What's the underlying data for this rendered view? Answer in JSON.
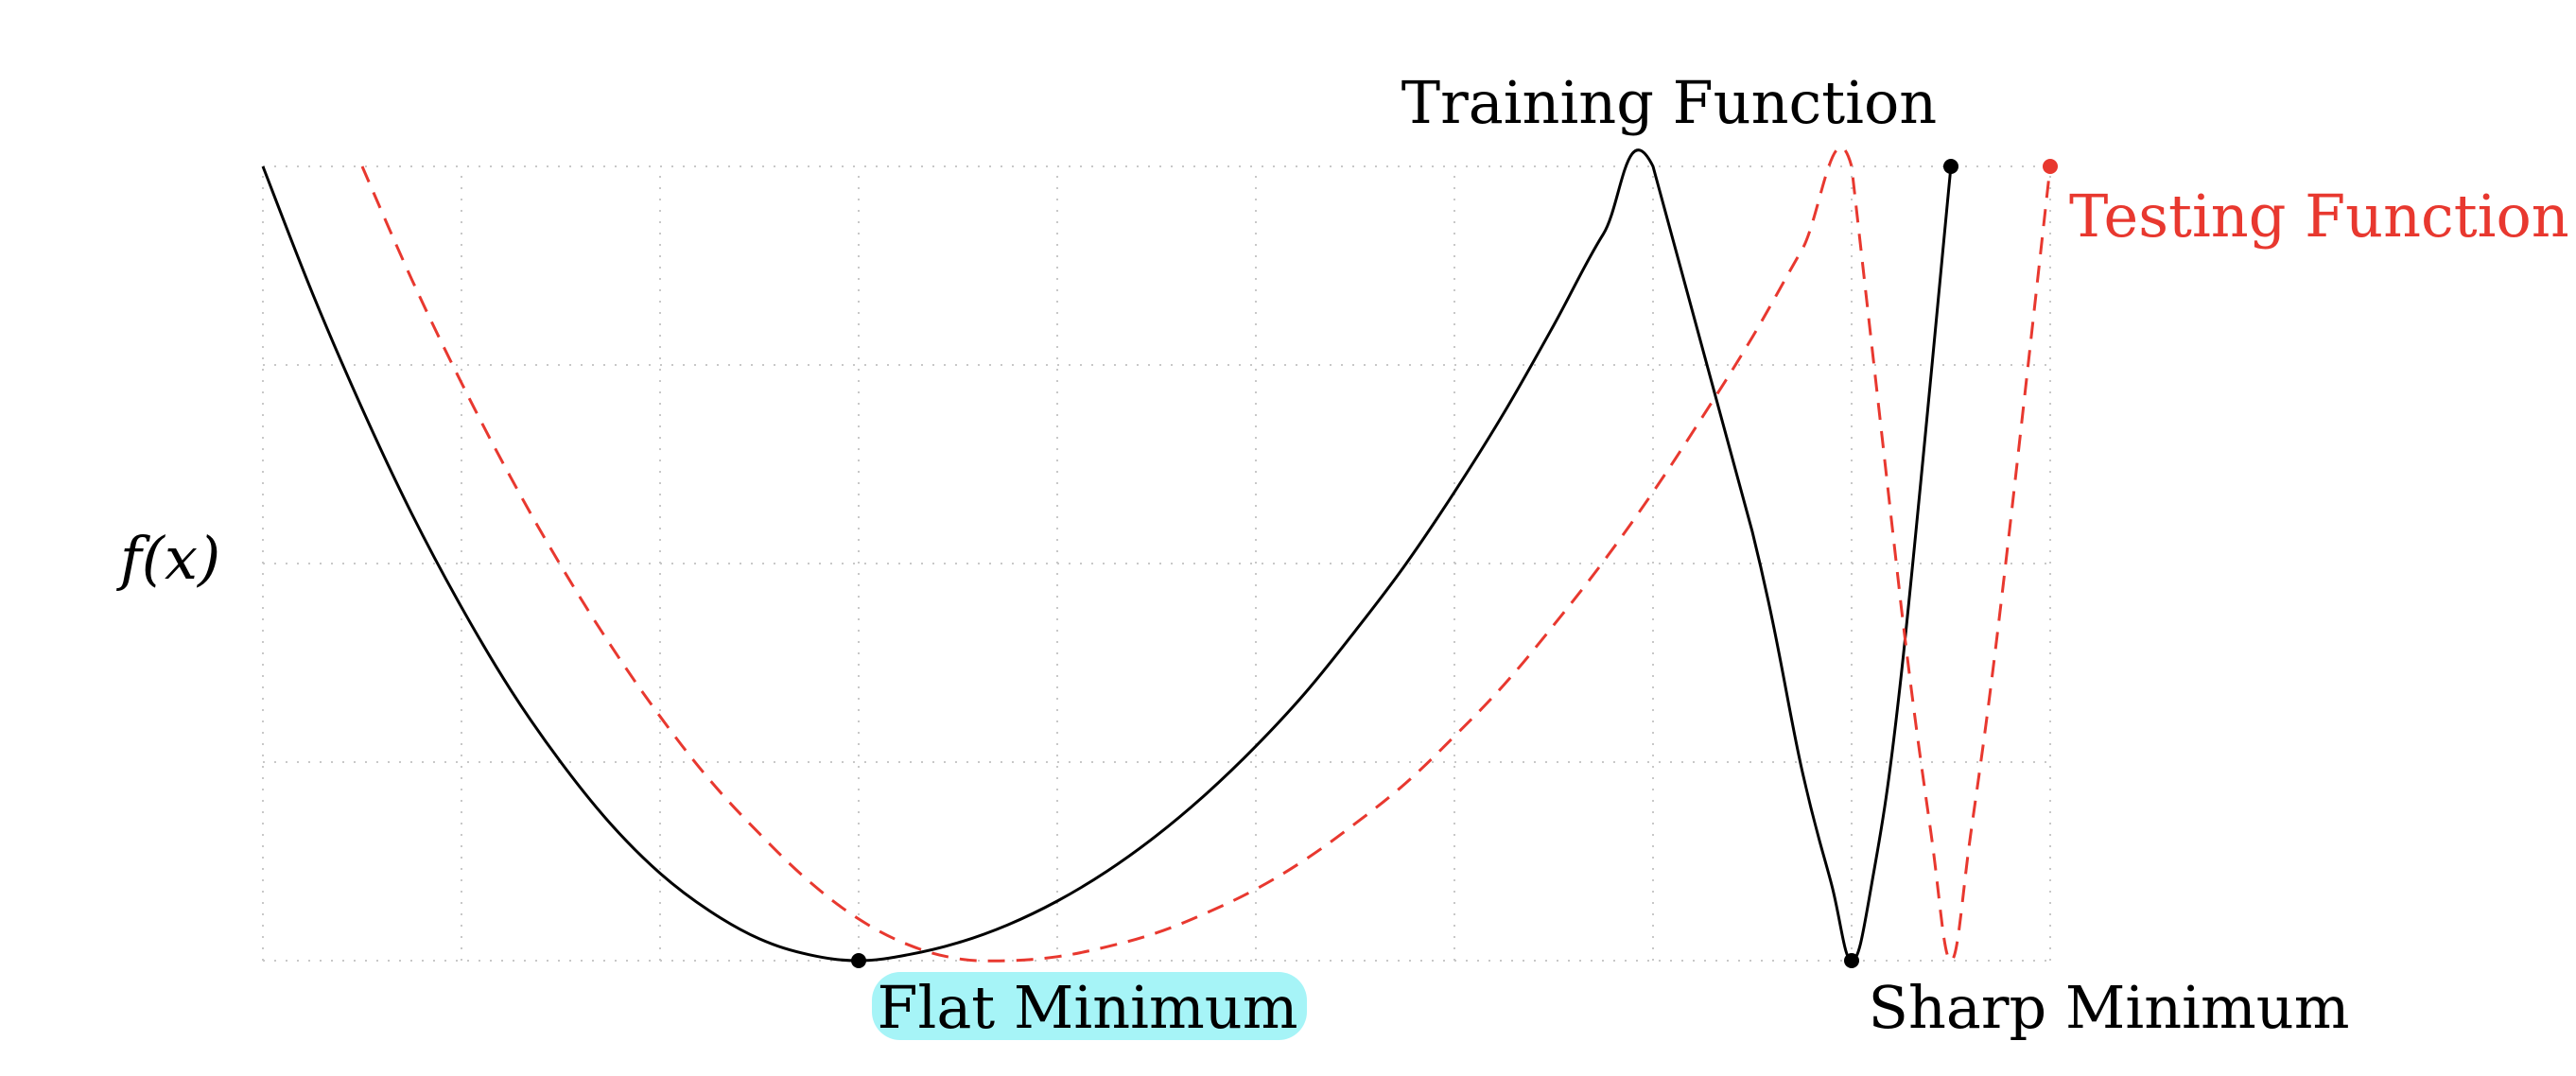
{
  "chart_data": {
    "type": "line",
    "title": "",
    "xlabel": "",
    "ylabel": "f(x)",
    "xlim": [
      0,
      9
    ],
    "ylim": [
      0,
      4
    ],
    "grid": true,
    "series": [
      {
        "name": "Training Function",
        "color": "#000000",
        "dash": "solid",
        "x": [
          0,
          0.25,
          0.5,
          0.75,
          1.0,
          1.25,
          1.5,
          1.75,
          2.0,
          2.25,
          2.5,
          2.75,
          3.0,
          3.25,
          3.5,
          3.75,
          4.0,
          4.25,
          4.5,
          4.75,
          5.0,
          5.25,
          5.5,
          5.75,
          6.0,
          6.25,
          6.5,
          6.75,
          7.0,
          7.5,
          7.75,
          7.9,
          8.0,
          8.1,
          8.25,
          8.5
        ],
        "y": [
          4.0,
          3.36,
          2.78,
          2.25,
          1.78,
          1.36,
          1.0,
          0.69,
          0.44,
          0.25,
          0.11,
          0.03,
          0.0,
          0.03,
          0.09,
          0.18,
          0.3,
          0.45,
          0.63,
          0.84,
          1.08,
          1.35,
          1.66,
          1.99,
          2.36,
          2.76,
          3.2,
          3.66,
          4.0,
          2.16,
          0.96,
          0.38,
          0.0,
          0.38,
          1.44,
          4.0
        ]
      },
      {
        "name": "Testing Function",
        "color": "#e8382f",
        "dash": "dashed",
        "x": [
          0.5,
          0.75,
          1.0,
          1.25,
          1.5,
          1.75,
          2.0,
          2.25,
          2.5,
          2.75,
          3.0,
          3.25,
          3.5,
          3.75,
          4.0,
          4.25,
          4.5,
          4.75,
          5.0,
          5.25,
          5.5,
          5.75,
          6.0,
          6.25,
          6.5,
          6.75,
          7.0,
          7.25,
          7.5,
          7.75,
          8.0,
          8.25,
          8.4,
          8.5,
          8.6,
          8.75,
          9.0
        ],
        "y": [
          4.0,
          3.43,
          2.91,
          2.43,
          1.99,
          1.59,
          1.23,
          0.91,
          0.64,
          0.4,
          0.21,
          0.08,
          0.01,
          0.0,
          0.02,
          0.07,
          0.14,
          0.24,
          0.36,
          0.51,
          0.69,
          0.89,
          1.13,
          1.39,
          1.69,
          2.01,
          2.36,
          2.74,
          3.14,
          3.58,
          4.0,
          1.78,
          0.64,
          0.0,
          0.64,
          1.78,
          4.0
        ]
      }
    ],
    "points": [
      {
        "x": 3.0,
        "y": 0,
        "color": "#000000"
      },
      {
        "x": 8.0,
        "y": 0,
        "color": "#000000"
      },
      {
        "x": 8.5,
        "y": 4,
        "color": "#000000"
      },
      {
        "x": 9.0,
        "y": 4,
        "color": "#e8382f"
      }
    ],
    "annotations": [
      {
        "text": "Training Function",
        "color": "#000000"
      },
      {
        "text": "Testing Function",
        "color": "#e8382f"
      },
      {
        "text": "Flat Minimum",
        "color": "#000000",
        "highlight": "#a6f4f7"
      },
      {
        "text": "Sharp Minimum",
        "color": "#000000"
      }
    ]
  }
}
